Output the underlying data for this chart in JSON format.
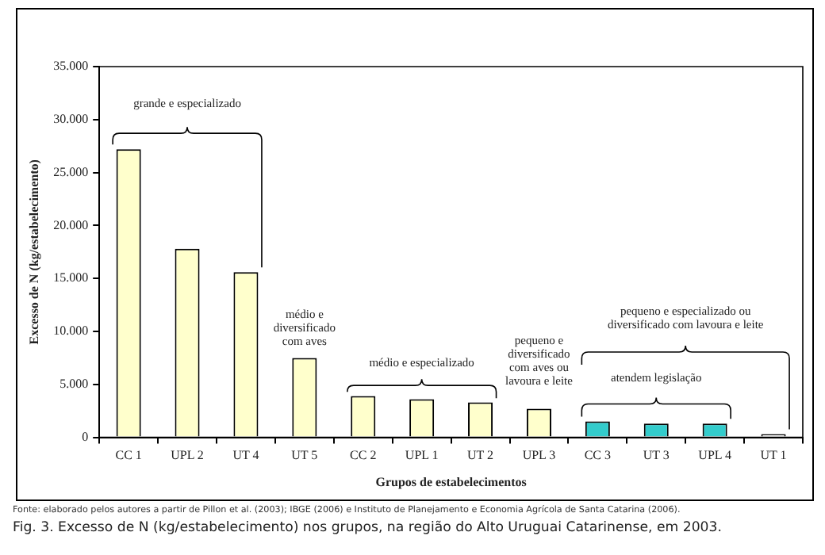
{
  "chart_data": {
    "type": "bar",
    "title": "Fig. 3. Excesso de N (kg/estabelecimento) nos grupos, na região do Alto Uruguai Catarinense, em 2003.",
    "xlabel": "Grupos de estabelecimentos",
    "ylabel": "Excesso de N (kg/estabelecimento)",
    "categories": [
      "CC 1",
      "UPL 2",
      "UT 4",
      "UT 5",
      "CC 2",
      "UPL 1",
      "UT 2",
      "UPL 3",
      "CC 3",
      "UT 3",
      "UPL 4",
      "UT 1"
    ],
    "values": [
      27200,
      17800,
      15600,
      7500,
      3900,
      3600,
      3300,
      2700,
      1500,
      1300,
      1300,
      300
    ],
    "colors": [
      "#ffffcc",
      "#ffffcc",
      "#ffffcc",
      "#ffffcc",
      "#ffffcc",
      "#ffffcc",
      "#ffffcc",
      "#ffffcc",
      "#33cccc",
      "#33cccc",
      "#33cccc",
      "#ffffff"
    ],
    "ylim": [
      0,
      35000
    ],
    "yticks": [
      {
        "value": 0,
        "label": "0"
      },
      {
        "value": 5000,
        "label": "5.000"
      },
      {
        "value": 10000,
        "label": "10.000"
      },
      {
        "value": 15000,
        "label": "15.000"
      },
      {
        "value": 20000,
        "label": "20.000"
      },
      {
        "value": 25000,
        "label": "25.000"
      },
      {
        "value": 30000,
        "label": "30.000"
      },
      {
        "value": 35000,
        "label": "35.000"
      }
    ],
    "grid": false,
    "legend": false,
    "annotations": [
      "grande e especializado",
      "médio e\ndiversificado\ncom aves",
      "médio e especializado",
      "pequeno e\ndiversificado\ncom aves ou\nlavoura e leite",
      "atendem legislação",
      "pequeno e especializado ou\ndiversificado com lavoura e leite",
      "Fonte: elaborado pelos autores a partir de Pillon et al. (2003); IBGE (2006) e Instituto de Planejamento e Economia Agrícola de Santa Catarina (2006)."
    ]
  }
}
